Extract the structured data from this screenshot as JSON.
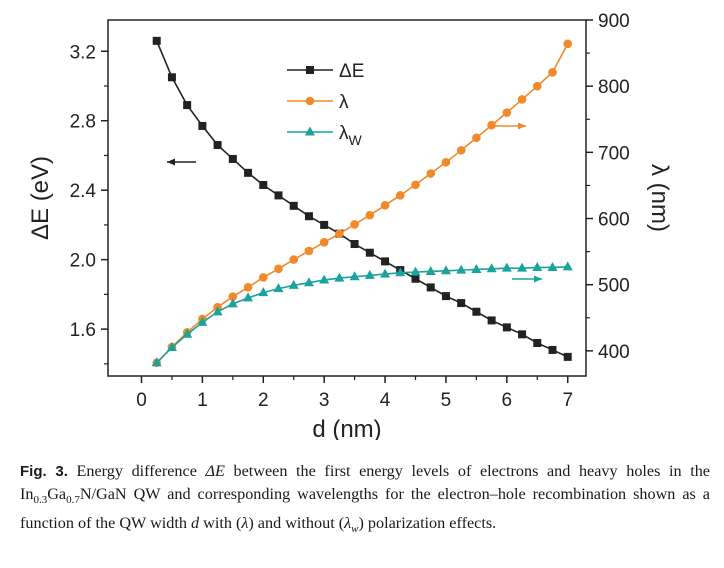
{
  "chart_data": {
    "type": "line",
    "xlabel": "d (nm)",
    "ylabel_left": "ΔE (eV)",
    "ylabel_right": "λ (nm)",
    "xlim": [
      -0.55,
      7.3
    ],
    "ylim_left": [
      1.33,
      3.38
    ],
    "ylim_right": [
      362,
      900
    ],
    "x_ticks": [
      "0",
      "1",
      "2",
      "3",
      "4",
      "5",
      "6",
      "7"
    ],
    "y_left_ticks": [
      "1.6",
      "2.0",
      "2.4",
      "2.8",
      "3.2"
    ],
    "y_right_ticks": [
      "400",
      "500",
      "600",
      "700",
      "800",
      "900"
    ],
    "grid": false,
    "legend_position": "top-center",
    "x": [
      0.25,
      0.5,
      0.75,
      1.0,
      1.25,
      1.5,
      1.75,
      2.0,
      2.25,
      2.5,
      2.75,
      3.0,
      3.25,
      3.5,
      3.75,
      4.0,
      4.25,
      4.5,
      4.75,
      5.0,
      5.25,
      5.5,
      5.75,
      6.0,
      6.25,
      6.5,
      6.75,
      7.0
    ],
    "series": [
      {
        "name": "ΔE",
        "axis": "left",
        "color": "#222222",
        "marker": "square",
        "values": [
          3.26,
          3.05,
          2.89,
          2.77,
          2.66,
          2.58,
          2.5,
          2.43,
          2.37,
          2.31,
          2.25,
          2.2,
          2.15,
          2.09,
          2.04,
          1.99,
          1.94,
          1.89,
          1.84,
          1.79,
          1.75,
          1.7,
          1.65,
          1.61,
          1.57,
          1.52,
          1.48,
          1.44
        ]
      },
      {
        "name": "λ",
        "axis": "right",
        "color": "#f08a2a",
        "marker": "circle",
        "values": [
          382,
          406,
          428,
          448,
          466,
          482,
          496,
          511,
          524,
          538,
          551,
          564,
          577,
          591,
          605,
          620,
          635,
          651,
          668,
          685,
          703,
          722,
          741,
          760,
          780,
          800,
          821,
          864
        ]
      },
      {
        "name": "λW",
        "axis": "right",
        "color": "#1aa39a",
        "marker": "triangle",
        "values": [
          382,
          405,
          425,
          443,
          459,
          471,
          480,
          488,
          494,
          499,
          503,
          507,
          510,
          512,
          514,
          516,
          518,
          519,
          520,
          521,
          522,
          523,
          524,
          525,
          525,
          526,
          526,
          527
        ]
      }
    ],
    "legend": [
      {
        "series": 0,
        "label": "ΔE",
        "sub": ""
      },
      {
        "series": 1,
        "label": "λ",
        "sub": ""
      },
      {
        "series": 2,
        "label": "λ",
        "sub": "W"
      }
    ],
    "annotations": [
      {
        "type": "arrow",
        "direction": "left",
        "series": 0
      },
      {
        "type": "arrow",
        "direction": "right",
        "series": 1
      },
      {
        "type": "arrow",
        "direction": "right",
        "series": 2
      }
    ]
  },
  "caption": {
    "label": "Fig. 3.",
    "parts": [
      {
        "t": " Energy difference "
      },
      {
        "t": "ΔE",
        "i": true
      },
      {
        "t": " between the first energy levels of electrons and heavy holes in the In"
      },
      {
        "t": "0.3",
        "sub": true
      },
      {
        "t": "Ga"
      },
      {
        "t": "0.7",
        "sub": true
      },
      {
        "t": "N/GaN QW and corresponding wavelengths for the electron–hole recombination shown as a function of the QW width "
      },
      {
        "t": "d",
        "i": true
      },
      {
        "t": " with ("
      },
      {
        "t": "λ",
        "i": true
      },
      {
        "t": ") and without ("
      },
      {
        "t": "λ",
        "i": true
      },
      {
        "t": "w",
        "sub": true,
        "i": true
      },
      {
        "t": ") polarization effects."
      }
    ]
  }
}
